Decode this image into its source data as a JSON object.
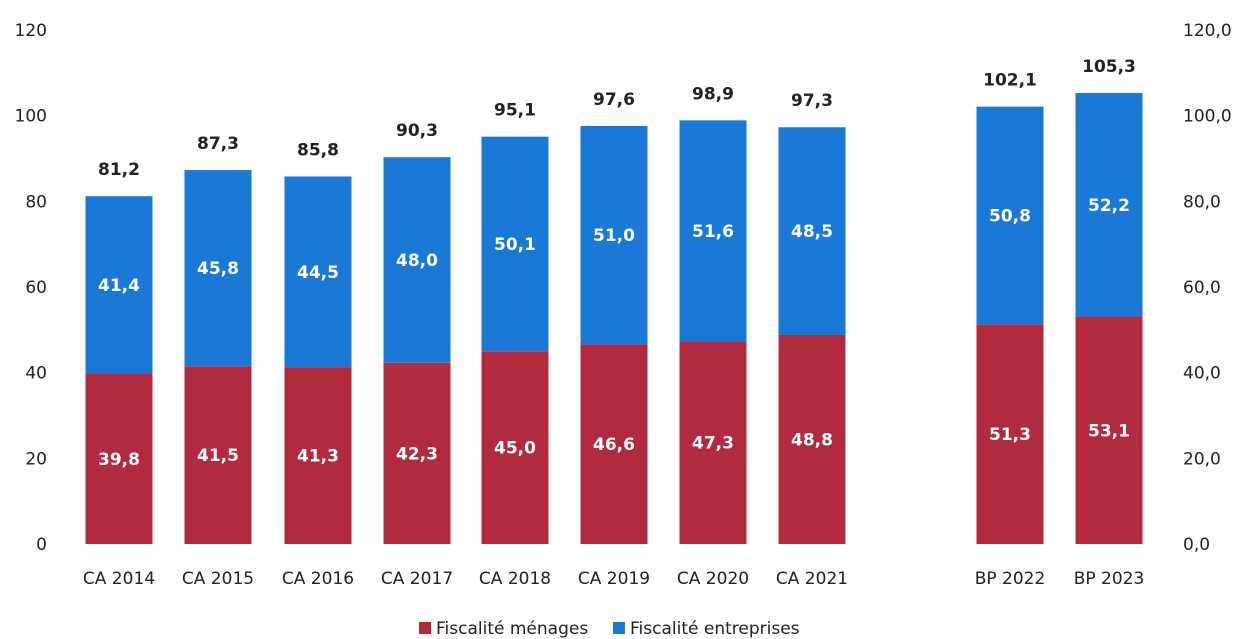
{
  "chart_data": {
    "type": "bar",
    "stacked": true,
    "categories": [
      "CA 2014",
      "CA 2015",
      "CA 2016",
      "CA 2017",
      "CA 2018",
      "CA 2019",
      "CA 2020",
      "CA 2021",
      "BP 2022",
      "BP 2023"
    ],
    "series": [
      {
        "name": "Fiscalité ménages",
        "color": "#b22a3e",
        "values": [
          39.8,
          41.5,
          41.3,
          42.3,
          45.0,
          46.6,
          47.3,
          48.8,
          51.3,
          53.1
        ],
        "labels": [
          "39,8",
          "41,5",
          "41,3",
          "42,3",
          "45,0",
          "46,6",
          "47,3",
          "48,8",
          "51,3",
          "53,1"
        ]
      },
      {
        "name": "Fiscalité entreprises",
        "color": "#1a78d6",
        "values": [
          41.4,
          45.8,
          44.5,
          48.0,
          50.1,
          51.0,
          51.6,
          48.5,
          50.8,
          52.2
        ],
        "labels": [
          "41,4",
          "45,8",
          "44,5",
          "48,0",
          "50,1",
          "51,0",
          "51,6",
          "48,5",
          "50,8",
          "52,2"
        ]
      }
    ],
    "totals": [
      81.2,
      87.3,
      85.8,
      90.3,
      95.1,
      97.6,
      98.9,
      97.3,
      102.1,
      105.3
    ],
    "total_labels": [
      "81,2",
      "87,3",
      "85,8",
      "90,3",
      "95,1",
      "97,6",
      "98,9",
      "97,3",
      "102,1",
      "105,3"
    ],
    "ylim": [
      0,
      120
    ],
    "y_ticks_left": [
      "0",
      "20",
      "40",
      "60",
      "80",
      "100",
      "120"
    ],
    "y_ticks_right": [
      "0,0",
      "20,0",
      "40,0",
      "60,0",
      "80,0",
      "100,0",
      "120,0"
    ],
    "grid": false,
    "legend": "bottom-center",
    "title": "",
    "xlabel": "",
    "ylabel": ""
  }
}
